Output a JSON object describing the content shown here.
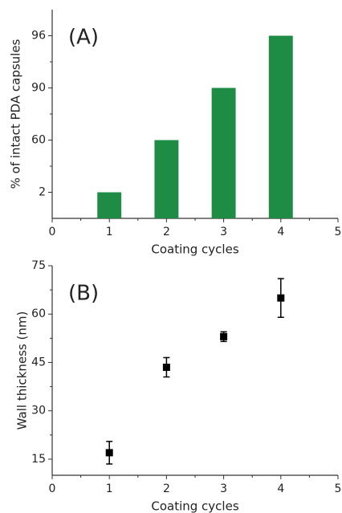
{
  "chart_data": [
    {
      "type": "bar",
      "annotation": "(A)",
      "ylabel": "% of intact  PDA capsules",
      "xlabel": "Coating cycles",
      "x": [
        1,
        2,
        3,
        4
      ],
      "values": [
        2,
        60,
        90,
        96
      ],
      "color": "#1e8c45",
      "xlim": [
        0,
        5
      ],
      "xticks": [
        0,
        1,
        2,
        3,
        4,
        5
      ],
      "yscale": "tick-spaced",
      "yticks": [
        2,
        60,
        90,
        96
      ]
    },
    {
      "type": "scatter",
      "annotation": "(B)",
      "ylabel": "Wall thickness (nm)",
      "xlabel": "Coating cycles",
      "x": [
        1,
        2,
        3,
        4
      ],
      "values": [
        17,
        43.5,
        53,
        65
      ],
      "errors": [
        3.5,
        3,
        1.5,
        6
      ],
      "color": "#000000",
      "xlim": [
        0,
        5
      ],
      "xticks": [
        0,
        1,
        2,
        3,
        4,
        5
      ],
      "ylim": [
        10,
        75
      ],
      "yticks": [
        15,
        30,
        45,
        60,
        75
      ]
    }
  ]
}
